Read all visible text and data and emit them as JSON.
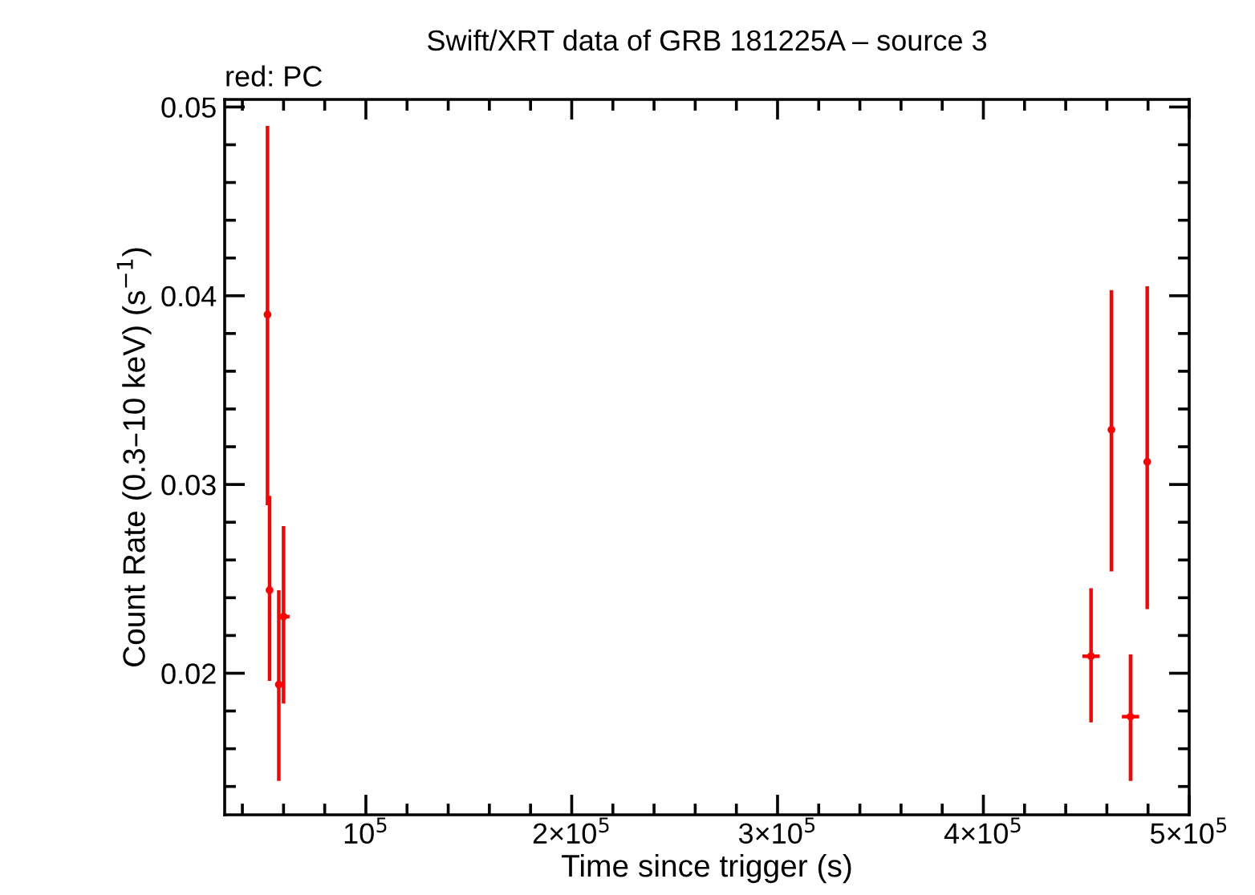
{
  "chart_data": {
    "type": "scatter",
    "title": "Swift/XRT data of GRB 181225A – source 3",
    "subtitle": "red: PC",
    "xlabel": "Time since trigger (s)",
    "ylabel": "Count Rate (0.3–10 keV) (s$^{−1}$)",
    "marker": "circle",
    "grid": false,
    "xlim": [
      31400,
      500000
    ],
    "ylim": [
      0.0125,
      0.0504
    ],
    "xticks": [
      {
        "value": 100000,
        "label": "10$^{5}$"
      },
      {
        "value": 200000,
        "label": "2×10$^{5}$"
      },
      {
        "value": 300000,
        "label": "3×10$^{5}$"
      },
      {
        "value": 400000,
        "label": "4×10$^{5}$"
      },
      {
        "value": 500000,
        "label": "5×10$^{5}$"
      }
    ],
    "yticks": [
      0.02,
      0.03,
      0.04,
      0.05
    ],
    "series": [
      {
        "color": "#ff0000",
        "x": [
          52200,
          53200,
          57700,
          60000,
          452300,
          462200,
          471500,
          479600
        ],
        "values": [
          0.039,
          0.0244,
          0.0194,
          0.023,
          0.0209,
          0.0329,
          0.0177,
          0.0312
        ],
        "errors": [
          [
            0.0289,
            0.049
          ],
          [
            0.0196,
            0.0294
          ],
          [
            0.0143,
            0.0244
          ],
          [
            0.0184,
            0.0278
          ],
          [
            0.0174,
            0.0245
          ],
          [
            0.0254,
            0.0403
          ],
          [
            0.0143,
            0.021
          ],
          [
            0.0234,
            0.0405
          ]
        ],
        "xerrors": [
          [
            51500,
            52900
          ],
          [
            52000,
            54400
          ],
          [
            56200,
            59200
          ],
          [
            57100,
            62900
          ],
          [
            448100,
            456500
          ],
          [
            461400,
            463000
          ],
          [
            467300,
            475700
          ],
          [
            478800,
            480400
          ]
        ]
      }
    ]
  }
}
